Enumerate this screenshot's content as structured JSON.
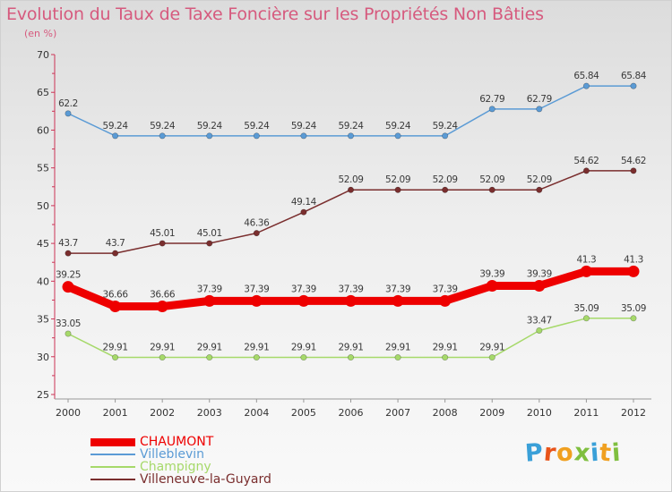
{
  "title": "Evolution du Taux de Taxe Foncière sur les Propriétés Non Bâties",
  "subtitle": "(en %)",
  "logo": {
    "text": "Proxiti",
    "letter_colors": [
      "#3aa0d8",
      "#e8541a",
      "#f0a020",
      "#7fbf3f",
      "#3aa0d8",
      "#f0a020",
      "#7fbf3f"
    ]
  },
  "chart_data": {
    "type": "line",
    "title": "Evolution du Taux de Taxe Foncière sur les Propriétés Non Bâties",
    "ylabel": "(en %)",
    "xlabel": "",
    "ylim": [
      25,
      70
    ],
    "yticks": [
      25,
      30,
      35,
      40,
      45,
      50,
      55,
      60,
      65,
      70
    ],
    "grid": false,
    "legend_position": "bottom-left",
    "x": [
      "2000",
      "2001",
      "2002",
      "2003",
      "2004",
      "2005",
      "2006",
      "2007",
      "2008",
      "2009",
      "2010",
      "2011",
      "2012"
    ],
    "series": [
      {
        "name": "CHAUMONT",
        "color": "#ee0000",
        "values": [
          39.25,
          36.66,
          36.66,
          37.39,
          37.39,
          37.39,
          37.39,
          37.39,
          37.39,
          39.39,
          39.39,
          41.3,
          41.3
        ],
        "labels": [
          "39.25",
          "36.66",
          "36.66",
          "37.39",
          "37.39",
          "37.39",
          "37.39",
          "37.39",
          "37.39",
          "39.39",
          "39.39",
          "41.3",
          "41.3"
        ]
      },
      {
        "name": "Villeblevin",
        "color": "#5b9bd5",
        "values": [
          62.2,
          59.24,
          59.24,
          59.24,
          59.24,
          59.24,
          59.24,
          59.24,
          59.24,
          62.79,
          62.79,
          65.84,
          65.84
        ],
        "labels": [
          "62.2",
          "59.24",
          "59.24",
          "59.24",
          "59.24",
          "59.24",
          "59.24",
          "59.24",
          "59.24",
          "62.79",
          "62.79",
          "65.84",
          "65.84"
        ]
      },
      {
        "name": "Champigny",
        "color": "#a6d96a",
        "values": [
          33.05,
          29.91,
          29.91,
          29.91,
          29.91,
          29.91,
          29.91,
          29.91,
          29.91,
          29.91,
          33.47,
          35.09,
          35.09
        ],
        "labels": [
          "33.05",
          "29.91",
          "29.91",
          "29.91",
          "29.91",
          "29.91",
          "29.91",
          "29.91",
          "29.91",
          "29.91",
          "33.47",
          "35.09",
          "35.09"
        ]
      },
      {
        "name": "Villeneuve-la-Guyard",
        "color": "#7a2e2e",
        "values": [
          43.7,
          43.7,
          45.01,
          45.01,
          46.36,
          49.14,
          52.09,
          52.09,
          52.09,
          52.09,
          52.09,
          54.62,
          54.62
        ],
        "labels": [
          "43.7",
          "43.7",
          "45.01",
          "45.01",
          "46.36",
          "49.14",
          "52.09",
          "52.09",
          "52.09",
          "52.09",
          "52.09",
          "54.62",
          "54.62"
        ]
      }
    ]
  }
}
